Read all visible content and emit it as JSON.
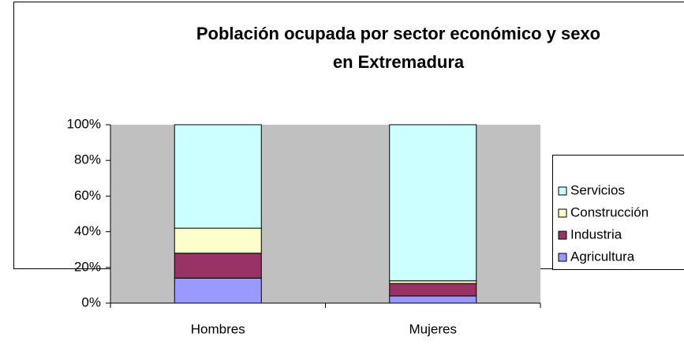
{
  "chart_data": {
    "type": "stacked_bar_percent",
    "title": [
      "Población ocupada por sector económico y sexo",
      "en Extremadura"
    ],
    "categories": [
      "Hombres",
      "Mujeres"
    ],
    "series": [
      {
        "name": "Agricultura",
        "color": "#9999ff",
        "values": [
          14,
          4
        ]
      },
      {
        "name": "Industria",
        "color": "#993366",
        "values": [
          14,
          7
        ]
      },
      {
        "name": "Construcción",
        "color": "#ffffcc",
        "values": [
          14,
          1.5
        ]
      },
      {
        "name": "Servicios",
        "color": "#ccffff",
        "values": [
          58,
          87.5
        ]
      }
    ],
    "ylim": [
      0,
      100
    ],
    "yticks": [
      {
        "value": 0,
        "label": "0%"
      },
      {
        "value": 20,
        "label": "20%"
      },
      {
        "value": 40,
        "label": "40%"
      },
      {
        "value": 60,
        "label": "60%"
      },
      {
        "value": 80,
        "label": "80%"
      },
      {
        "value": 100,
        "label": "100%"
      }
    ],
    "grid": false,
    "legend": "right"
  }
}
